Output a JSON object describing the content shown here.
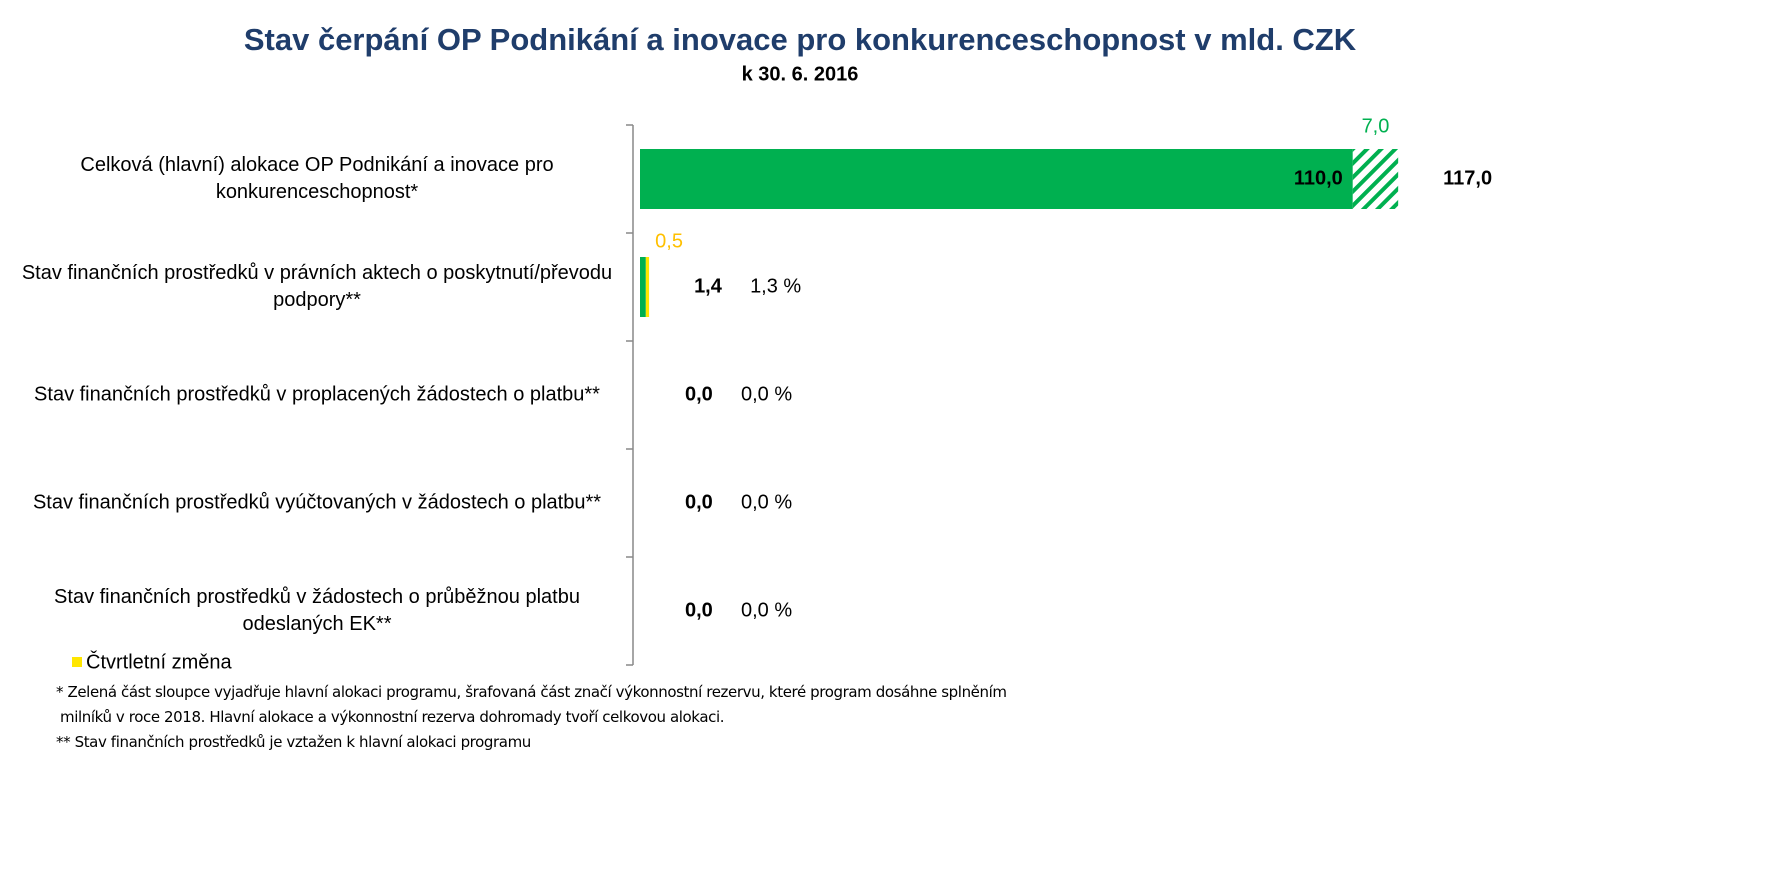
{
  "chart_data": {
    "type": "bar",
    "orientation": "horizontal",
    "title": "Stav čerpání OP Podnikání a inovace pro konkurenceschopnost v mld. CZK",
    "subtitle": "k 30. 6. 2016",
    "categories": [
      "Celková (hlavní) alokace OP Podnikání a inovace pro konkurenceschopnost*",
      "Stav finančních prostředků v právních aktech o poskytnutí/převodu podpory**",
      "Stav finančních prostředků v proplacených žádostech o platbu**",
      "Stav finančních prostředků vyúčtovaných v žádostech o platbu**",
      "Stav finančních prostředků v žádostech o průběžnou platbu odeslaných EK**"
    ],
    "series": [
      {
        "color": "#00b050",
        "values": [
          110.0,
          0.9,
          0.0,
          0.0,
          0.0
        ],
        "value_labels": [
          "110,0",
          null,
          null,
          null,
          null
        ]
      },
      {
        "color": "#00b050",
        "pattern": "hatch",
        "values": [
          7.0,
          null,
          null,
          null,
          null
        ],
        "value_labels": [
          "7,0",
          null,
          null,
          null,
          null
        ]
      },
      {
        "name": "Čtvrtletní změna",
        "color": "#ffe600",
        "values": [
          null,
          0.5,
          null,
          null,
          null
        ],
        "value_labels": [
          null,
          "0,5",
          null,
          null,
          null
        ]
      }
    ],
    "totals": [
      117.0,
      1.4,
      0.0,
      0.0,
      0.0
    ],
    "total_labels": [
      "117,0",
      "1,4",
      "0,0",
      "0,0",
      "0,0"
    ],
    "percent": [
      null,
      1.3,
      0.0,
      0.0,
      0.0
    ],
    "percent_labels": [
      null,
      "1,3 %",
      "0,0 %",
      "0,0 %",
      "0,0 %"
    ],
    "xlim": [
      0,
      130
    ],
    "legend": "bottom-left",
    "footnotes": [
      "* Zelená část sloupce vyjadřuje hlavní alokaci programu, šrafovaná část značí výkonnostní rezervu, které program dosáhne splněním",
      "milníků v roce 2018.  Hlavní alokace a výkonnostní rezerva dohromady tvoří celkovou alokaci.",
      "** Stav finančních prostředků je vztažen k hlavní alokaci programu"
    ]
  }
}
